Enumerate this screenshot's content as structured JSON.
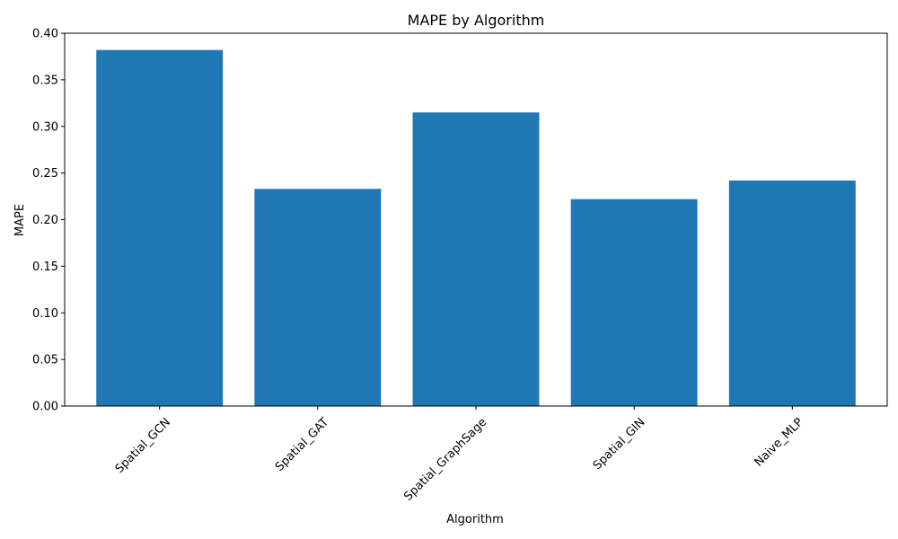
{
  "chart_data": {
    "type": "bar",
    "title": "MAPE by Algorithm",
    "xlabel": "Algorithm",
    "ylabel": "MAPE",
    "categories": [
      "Spatial_GCN",
      "Spatial_GAT",
      "Spatial_GraphSage",
      "Spatial_GIN",
      "Naive_MLP"
    ],
    "values": [
      0.382,
      0.233,
      0.315,
      0.222,
      0.242
    ],
    "ylim": [
      0,
      0.4
    ],
    "yticks": [
      "0.00",
      "0.05",
      "0.10",
      "0.15",
      "0.20",
      "0.25",
      "0.30",
      "0.35",
      "0.40"
    ],
    "x_tick_rotation_deg": 45,
    "bar_color": "#1f77b4",
    "grid": false,
    "legend": "none"
  }
}
